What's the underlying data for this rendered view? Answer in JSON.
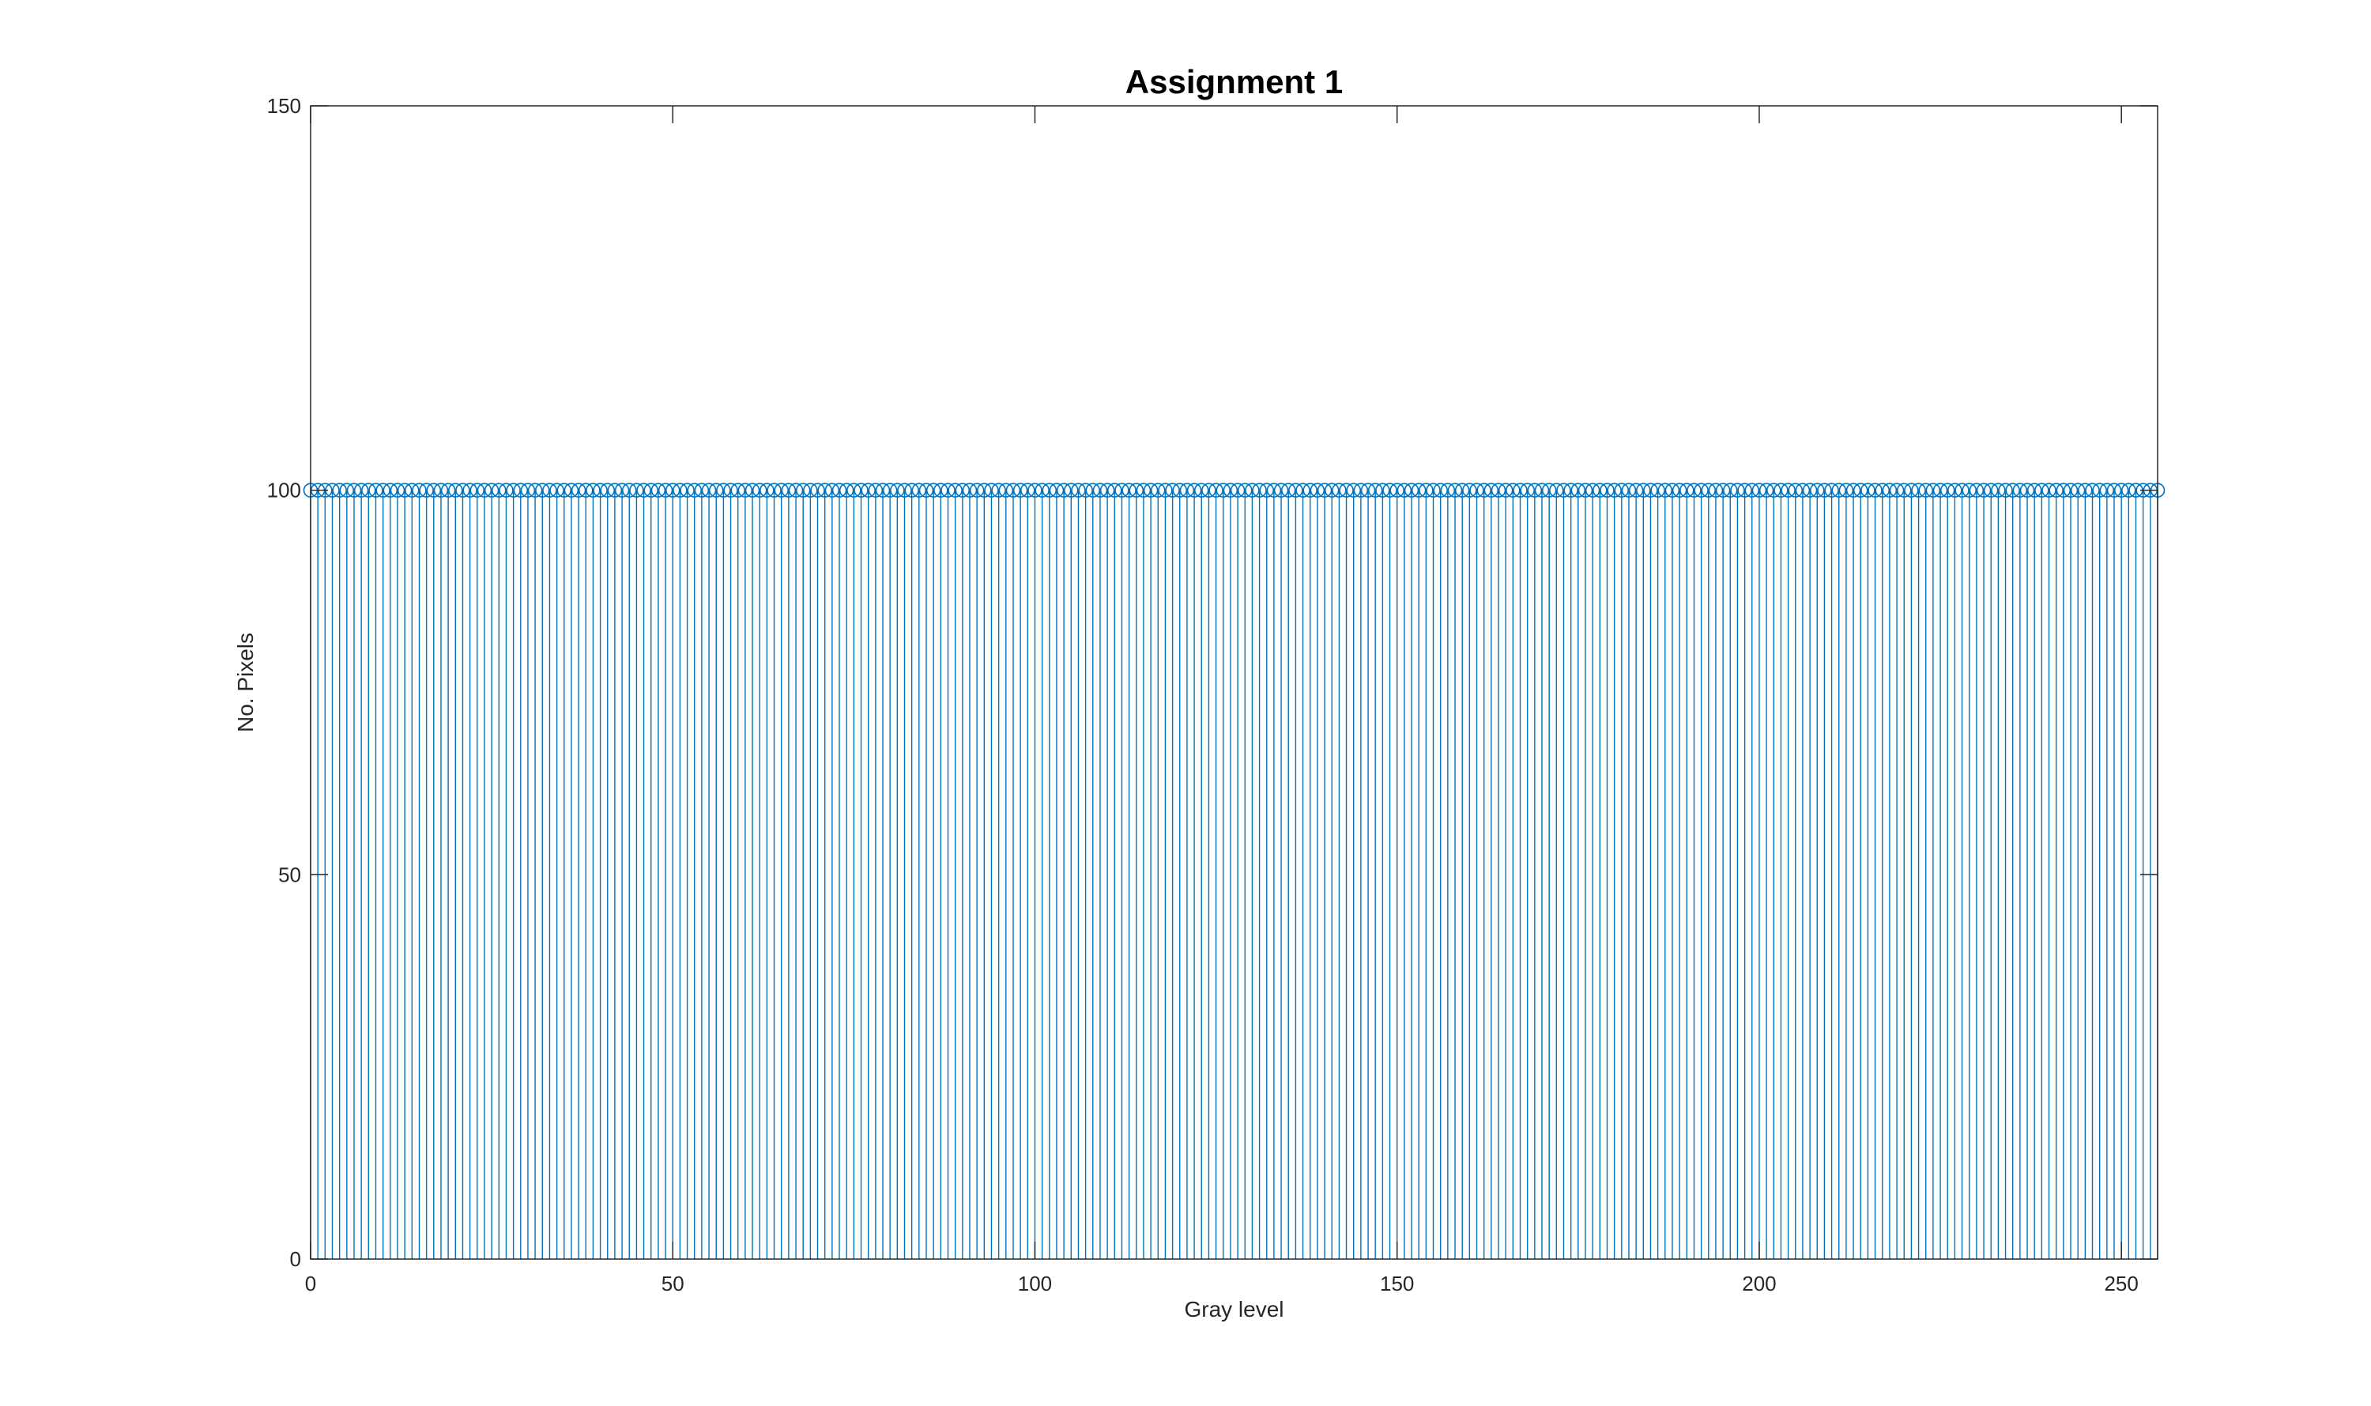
{
  "chart_data": {
    "type": "stem",
    "title": "Assignment 1",
    "xlabel": "Gray level",
    "ylabel": "No. Pixels",
    "xlim": [
      0,
      255
    ],
    "ylim": [
      0,
      150
    ],
    "x_ticks": [
      0,
      50,
      100,
      150,
      200,
      250
    ],
    "y_ticks": [
      0,
      50,
      100,
      150
    ],
    "x_tick_labels": [
      "0",
      "50",
      "100",
      "150",
      "200",
      "250"
    ],
    "y_tick_labels": [
      "0",
      "50",
      "100",
      "150"
    ],
    "x_start": 0,
    "x_end": 255,
    "constant_value": 100,
    "grid": false,
    "marker": "circle-open",
    "series_color": "#0072BD",
    "axis_color": "#262626"
  }
}
